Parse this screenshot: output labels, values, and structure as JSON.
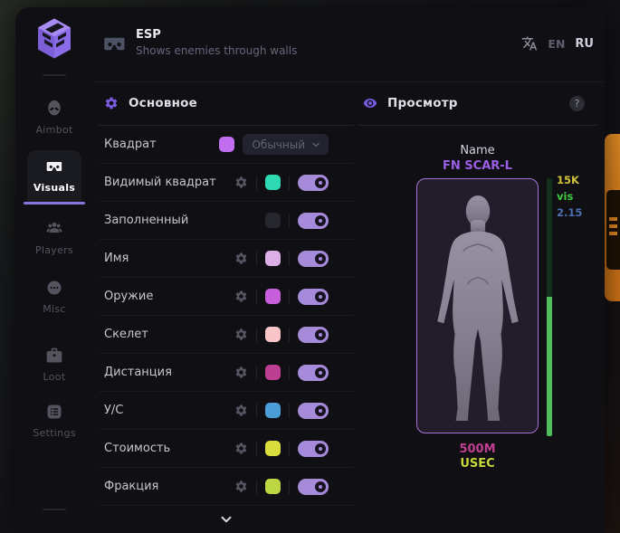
{
  "header": {
    "icon": "goggles-icon",
    "title": "ESP",
    "subtitle": "Shows enemies through walls",
    "translate_icon": "translate-icon",
    "languages": [
      {
        "code": "EN",
        "active": false
      },
      {
        "code": "RU",
        "active": true
      }
    ]
  },
  "sidebar": {
    "logo_icon": "sg-cube-logo",
    "items": [
      {
        "label": "Aimbot",
        "icon": "alien",
        "active": false
      },
      {
        "label": "Visuals",
        "icon": "goggles",
        "active": true
      },
      {
        "label": "Players",
        "icon": "players",
        "active": false
      },
      {
        "label": "Misc",
        "icon": "misc",
        "active": false
      },
      {
        "label": "Loot",
        "icon": "loot",
        "active": false
      },
      {
        "label": "Settings",
        "icon": "settings",
        "active": false
      }
    ]
  },
  "settings_panel": {
    "icon": "gear-icon",
    "title": "Основное",
    "rows": [
      {
        "label": "Квадрат",
        "gear": false,
        "swatch": "#c06df0",
        "dropdown": "Обычный",
        "toggle": null
      },
      {
        "label": "Видимый квадрат",
        "gear": true,
        "swatch": "#2ed9b4",
        "dropdown": null,
        "toggle": true
      },
      {
        "label": "Заполненный",
        "gear": false,
        "swatch": "#26262f",
        "dropdown": null,
        "toggle": true
      },
      {
        "label": "Имя",
        "gear": true,
        "swatch": "#dcafe6",
        "dropdown": null,
        "toggle": true
      },
      {
        "label": "Оружие",
        "gear": true,
        "swatch": "#c75fdc",
        "dropdown": null,
        "toggle": true
      },
      {
        "label": "Скелет",
        "gear": true,
        "swatch": "#f9c5c8",
        "dropdown": null,
        "toggle": true
      },
      {
        "label": "Дистанция",
        "gear": true,
        "swatch": "#bd3f92",
        "dropdown": null,
        "toggle": true
      },
      {
        "label": "У/С",
        "gear": true,
        "swatch": "#4c9ed8",
        "dropdown": null,
        "toggle": true
      },
      {
        "label": "Стоимость",
        "gear": true,
        "swatch": "#d9dd3e",
        "dropdown": null,
        "toggle": true
      },
      {
        "label": "Фракция",
        "gear": true,
        "swatch": "#bdd643",
        "dropdown": null,
        "toggle": true
      }
    ],
    "more_icon": "chevron-down-icon"
  },
  "preview_panel": {
    "icon": "eye-icon",
    "title": "Просмотр",
    "help_badge": "?",
    "target": {
      "label": "Name",
      "name": "FN SCAR-L",
      "name_color": "#9c5fe8"
    },
    "stats": [
      {
        "text": "15K",
        "color": "#cfc13a"
      },
      {
        "text": "vis",
        "color": "#3ecb3e"
      },
      {
        "text": "2.15",
        "color": "#4d6fb0"
      }
    ],
    "health": {
      "fill_percent": 54,
      "fill_color": "#4fbe5c",
      "track_color": "#14301c"
    },
    "footer": {
      "distance": "500M",
      "distance_color": "#c13f92",
      "faction": "USEC",
      "faction_color": "#c8d83a"
    }
  },
  "theme": {
    "accent_purple": "#8875e0",
    "toggle_on": "#a78bdb",
    "window_bg": "#0f0f14",
    "edge_fragment_orange": "#d8831f"
  }
}
